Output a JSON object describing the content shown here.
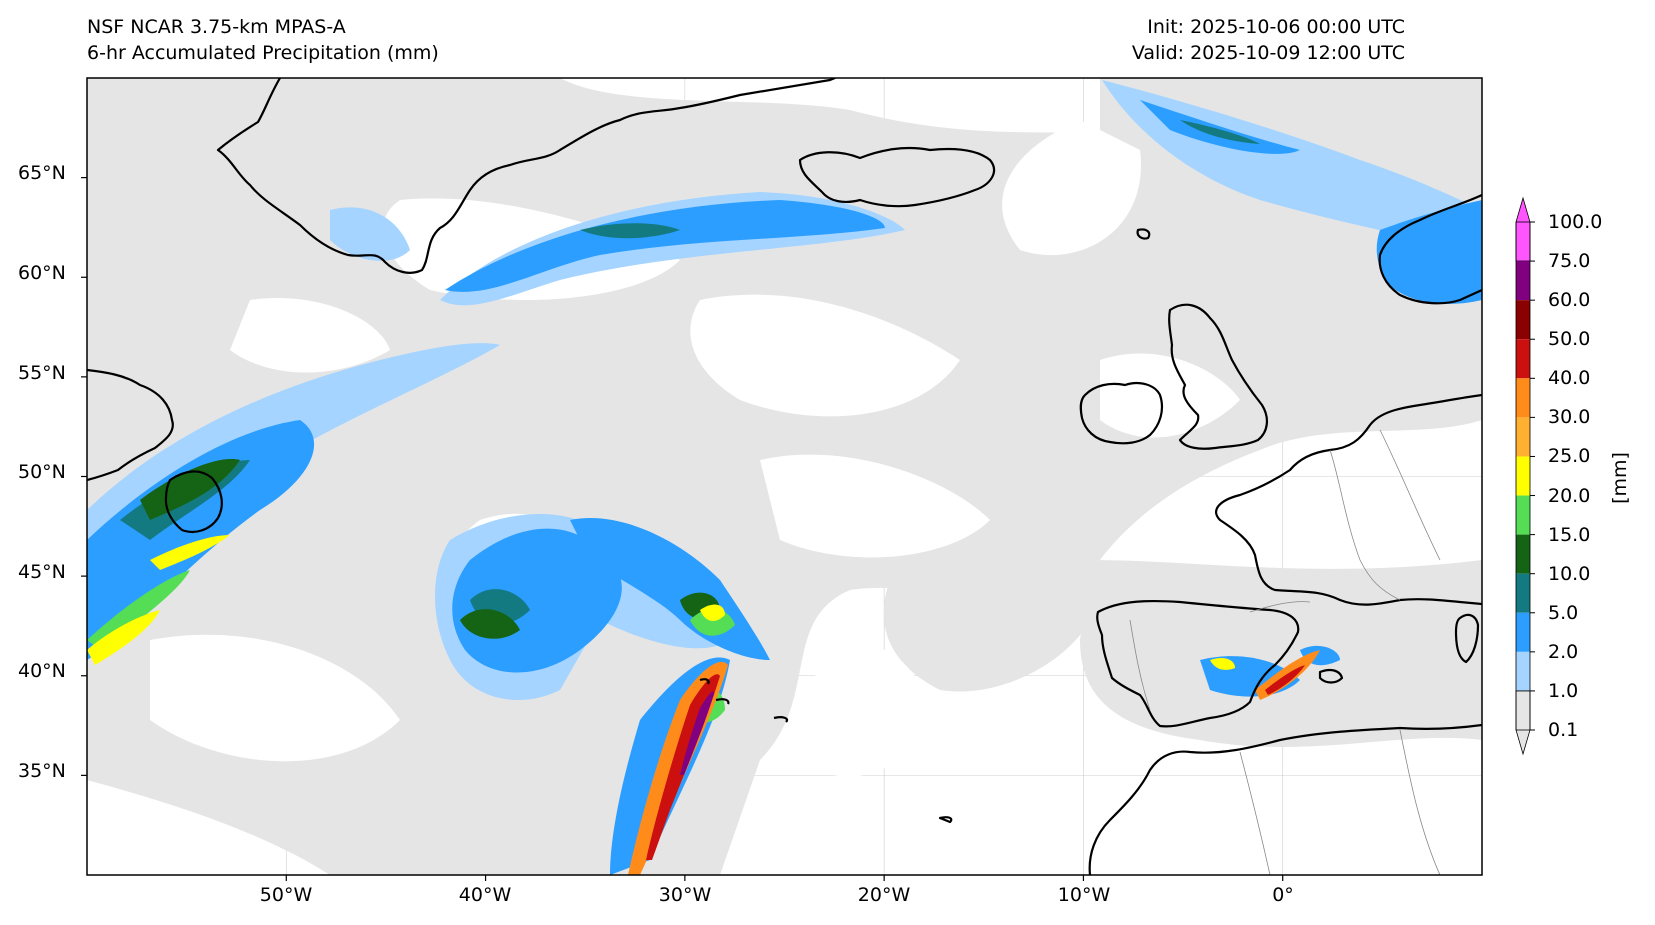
{
  "header": {
    "model": "NSF NCAR 3.75-km MPAS-A",
    "product": "6-hr Accumulated Precipitation (mm)",
    "init": "Init: 2025-10-06 00:00 UTC",
    "valid": "Valid: 2025-10-09 12:00 UTC"
  },
  "map": {
    "lon_range": [
      -60,
      10
    ],
    "lat_range": [
      30,
      70
    ],
    "lat_ticks": [
      "65°N",
      "60°N",
      "55°N",
      "50°N",
      "45°N",
      "40°N",
      "35°N"
    ],
    "lon_ticks": [
      "50°W",
      "40°W",
      "30°W",
      "20°W",
      "10°W",
      "0°"
    ],
    "gridlines": true,
    "background_precip_color": "#e5e5e5",
    "coastline_color": "#000000"
  },
  "colorbar": {
    "units": "[mm]",
    "levels": [
      "100.0",
      "75.0",
      "60.0",
      "50.0",
      "40.0",
      "30.0",
      "25.0",
      "20.0",
      "15.0",
      "10.0",
      "5.0",
      "2.0",
      "1.0",
      "0.1"
    ],
    "colors": [
      "#ff55ff",
      "#800080",
      "#8b0000",
      "#cc1010",
      "#ff8c1a",
      "#ffb030",
      "#ffff00",
      "#55dd55",
      "#156315",
      "#137a82",
      "#2b9eff",
      "#a4d4ff",
      "#e5e5e5"
    ],
    "extend": "both"
  }
}
